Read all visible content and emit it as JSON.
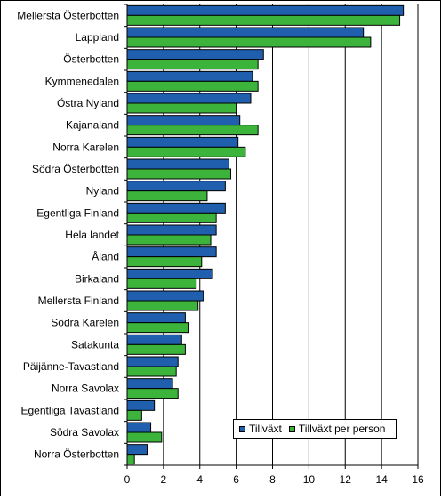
{
  "chart_data": {
    "type": "bar",
    "orientation": "horizontal",
    "categories": [
      "Mellersta Österbotten",
      "Lappland",
      "Österbotten",
      "Kymmenedalen",
      "Östra Nyland",
      "Kajanaland",
      "Norra Karelen",
      "Södra Österbotten",
      "Nyland",
      "Egentliga Finland",
      "Hela landet",
      "Åland",
      "Birkaland",
      "Mellersta Finland",
      "Södra Karelen",
      "Satakunta",
      "Päijänne-Tavastland",
      "Norra Savolax",
      "Egentliga Tavastland",
      "Södra Savolax",
      "Norra Österbotten"
    ],
    "series": [
      {
        "name": "Tillväxt",
        "color": "#1f5fae",
        "values": [
          15.2,
          13.0,
          7.5,
          6.9,
          6.8,
          6.2,
          6.1,
          5.6,
          5.4,
          5.4,
          4.9,
          4.9,
          4.7,
          4.2,
          3.2,
          3.0,
          2.8,
          2.5,
          1.5,
          1.3,
          1.1
        ]
      },
      {
        "name": "Tillväxt per person",
        "color": "#3cb43c",
        "values": [
          15.0,
          13.4,
          7.2,
          7.2,
          6.0,
          7.2,
          6.5,
          5.7,
          4.4,
          4.9,
          4.6,
          4.1,
          3.8,
          3.9,
          3.4,
          3.2,
          2.7,
          2.8,
          0.8,
          1.9,
          0.4
        ]
      }
    ],
    "xlim": [
      0,
      16
    ],
    "xticks": [
      "0",
      "2",
      "4",
      "6",
      "8",
      "10",
      "12",
      "14",
      "16"
    ],
    "grid": true,
    "legend_position": "bottom-right"
  }
}
